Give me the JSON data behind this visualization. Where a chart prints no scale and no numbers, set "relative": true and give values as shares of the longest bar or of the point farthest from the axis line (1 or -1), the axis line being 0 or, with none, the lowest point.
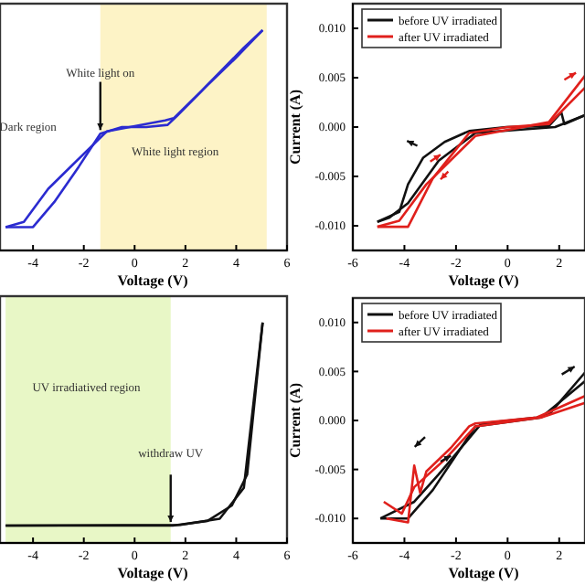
{
  "chart_data": [
    {
      "type": "line",
      "relative": true,
      "xlabel": "Voltage (V)",
      "xlim": [
        -5.3,
        6
      ],
      "xticks": [
        -4,
        -2,
        0,
        2,
        4,
        6
      ],
      "series": [
        {
          "color": "#2b2bd0",
          "x": [
            -5.08,
            -4,
            -3.16,
            -2.2,
            -1.35,
            -0.5,
            0.46,
            1.3,
            1.66,
            2.87,
            3.95,
            5.04
          ],
          "values": [
            0.106,
            0.106,
            0.22,
            0.38,
            0.53,
            0.56,
            0.56,
            0.57,
            0.61,
            0.75,
            0.87,
            1.0
          ]
        },
        {
          "color": "#2b2bd0",
          "x": [
            -5.08,
            -4.36,
            -3.4,
            -2.43,
            -1.1,
            1.2,
            1.54,
            2.6,
            4.3,
            5.04
          ],
          "values": [
            0.106,
            0.13,
            0.28,
            0.39,
            0.54,
            0.59,
            0.6,
            0.72,
            0.92,
            1.0
          ]
        }
      ],
      "bands": [
        {
          "axis": "x",
          "from": -1.35,
          "to": 5.2,
          "label": "White light region",
          "color": "#fdf3c6"
        }
      ],
      "annotations": [
        "Dark region",
        {
          "text": "White light on",
          "x": -1.35,
          "y": 0.53
        }
      ]
    },
    {
      "type": "line",
      "xlabel": "Voltage (V)",
      "ylabel": "Current (A)",
      "xlim": [
        -6,
        3
      ],
      "xticks": [
        -6,
        -4,
        -2,
        0,
        2
      ],
      "ylim": [
        -0.0125,
        0.0125
      ],
      "yticks": [
        {
          "value": -0.01,
          "label": "-0.010"
        },
        {
          "value": -0.005,
          "label": "-0.005"
        },
        {
          "value": 0,
          "label": "0.000"
        },
        {
          "value": 0.005,
          "label": "0.005"
        },
        {
          "value": 0.01,
          "label": "0.010"
        }
      ],
      "legend": "top left",
      "series": [
        {
          "name": "before UV irradiated",
          "color": "#111111",
          "x": [
            -5.05,
            -4.2,
            -3.86,
            -3.27,
            -2.44,
            -1.49,
            -0.06,
            1.6,
            2.08,
            2.2,
            3.0
          ],
          "values": [
            -0.0096,
            -0.0086,
            -0.0058,
            -0.0031,
            -0.0015,
            -0.0004,
            0,
            0.0001,
            0.0015,
            0.0003,
            0.0012
          ]
        },
        {
          "color": "#111111",
          "x": [
            -5.05,
            -4.6,
            -3.86,
            -2.67,
            -1.25,
            1.84,
            3.0
          ],
          "values": [
            -0.0096,
            -0.0092,
            -0.0077,
            -0.0034,
            -0.0006,
            0,
            0.0012
          ]
        },
        {
          "name": "after UV irradiated",
          "color": "#e0201c",
          "x": [
            -5.05,
            -3.86,
            -2.9,
            -1.49,
            0,
            1.6,
            3.0
          ],
          "values": [
            -0.0101,
            -0.0101,
            -0.0052,
            -0.0006,
            0,
            0.0003,
            0.004
          ]
        },
        {
          "color": "#e0201c",
          "x": [
            -5.05,
            -4.2,
            -3.15,
            -1.25,
            1.6,
            3.0
          ],
          "values": [
            -0.0101,
            -0.0095,
            -0.0058,
            -0.0009,
            0.0005,
            0.0052
          ]
        }
      ]
    },
    {
      "type": "line",
      "relative": true,
      "xlabel": "Voltage (V)",
      "xlim": [
        -5.3,
        6
      ],
      "xticks": [
        -4,
        -2,
        0,
        2,
        4,
        6
      ],
      "series": [
        {
          "color": "#111111",
          "x": [
            -5.08,
            1.5,
            2.87,
            3.83,
            4.43,
            5.04
          ],
          "values": [
            0.079,
            0.079,
            0.1,
            0.17,
            0.31,
            1.0
          ]
        },
        {
          "color": "#111111",
          "x": [
            -5.08,
            1.8,
            3.35,
            4.3,
            5.04
          ],
          "values": [
            0.079,
            0.082,
            0.11,
            0.25,
            1.0
          ]
        }
      ],
      "bands": [
        {
          "axis": "x",
          "from": -5.08,
          "to": 1.42,
          "label": "UV irradiatived region",
          "color": "#e8f7c6"
        }
      ],
      "annotations": [
        "withdraw UV"
      ]
    },
    {
      "type": "line",
      "xlabel": "Voltage (V)",
      "ylabel": "Current (A)",
      "xlim": [
        -6,
        3
      ],
      "xticks": [
        -6,
        -4,
        -2,
        0,
        2
      ],
      "ylim": [
        -0.0125,
        0.0125
      ],
      "yticks": [
        {
          "value": -0.01,
          "label": "-0.010"
        },
        {
          "value": -0.005,
          "label": "-0.005"
        },
        {
          "value": 0,
          "label": "0.000"
        },
        {
          "value": 0.005,
          "label": "0.005"
        },
        {
          "value": 0.01,
          "label": "0.010"
        }
      ],
      "legend": "top left",
      "series": [
        {
          "name": "before UV irradiated",
          "color": "#111111",
          "x": [
            -4.93,
            -3.62,
            -2.67,
            -1.01,
            1.13,
            1.6,
            3.0
          ],
          "values": [
            -0.01,
            -0.0083,
            -0.0055,
            -0.0003,
            0.0003,
            0.0006,
            0.0049
          ]
        },
        {
          "color": "#111111",
          "x": [
            -4.93,
            -3.86,
            -2.9,
            -1.25,
            1.3,
            3.0
          ],
          "values": [
            -0.01,
            -0.01,
            -0.0071,
            -0.0006,
            0.0003,
            0.004
          ]
        },
        {
          "name": "after UV irradiated",
          "color": "#e0201c",
          "x": [
            -4.7,
            -3.86,
            -3.62,
            -3.39,
            -3.15,
            -2.2,
            -1.49,
            -1.25,
            1.13,
            3.0
          ],
          "values": [
            -0.01,
            -0.0104,
            -0.0046,
            -0.0074,
            -0.0052,
            -0.0028,
            -0.0006,
            -0.0003,
            0.0003,
            0.0025
          ]
        },
        {
          "color": "#e0201c",
          "x": [
            -4.8,
            -4.1,
            -3.62,
            -2.44,
            -1.25,
            1.3,
            3.0
          ],
          "values": [
            -0.0083,
            -0.0095,
            -0.0068,
            -0.004,
            -0.0006,
            0.0003,
            0.0018
          ]
        }
      ]
    }
  ]
}
